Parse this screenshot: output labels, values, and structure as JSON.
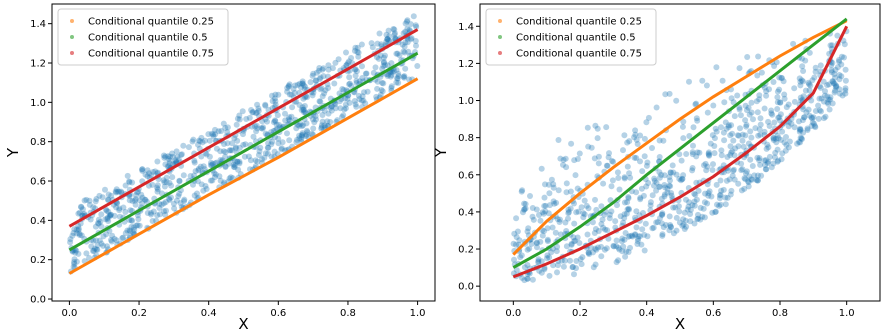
{
  "chart_data": [
    {
      "type": "scatter",
      "title": "",
      "xlabel": "X",
      "ylabel": "Y",
      "xlim": [
        -0.05,
        1.05
      ],
      "ylim": [
        -0.01,
        1.5
      ],
      "xticks": [
        "0.0",
        "0.2",
        "0.4",
        "0.6",
        "0.8",
        "1.0"
      ],
      "yticks": [
        "0.0",
        "0.2",
        "0.4",
        "0.6",
        "0.8",
        "1.0",
        "1.2",
        "1.4"
      ],
      "grid": false,
      "legend_position": "top-left",
      "scatter_color": "#1f77b4",
      "scatter_pattern": "linear",
      "series": [
        {
          "name": "Conditional quantile 0.25",
          "color": "#ff7f0e",
          "x": [
            0.0,
            0.2,
            0.4,
            0.6,
            0.8,
            1.0
          ],
          "y": [
            0.13,
            0.33,
            0.53,
            0.72,
            0.92,
            1.12
          ]
        },
        {
          "name": "Conditional quantile 0.5",
          "color": "#2ca02c",
          "x": [
            0.0,
            0.2,
            0.4,
            0.6,
            0.8,
            1.0
          ],
          "y": [
            0.25,
            0.45,
            0.65,
            0.85,
            1.05,
            1.25
          ]
        },
        {
          "name": "Conditional quantile 0.75",
          "color": "#d62728",
          "x": [
            0.0,
            0.2,
            0.4,
            0.6,
            0.8,
            1.0
          ],
          "y": [
            0.37,
            0.57,
            0.77,
            0.97,
            1.17,
            1.37
          ]
        }
      ]
    },
    {
      "type": "scatter",
      "title": "",
      "xlabel": "X",
      "ylabel": "Y",
      "xlim": [
        -0.1,
        1.1
      ],
      "ylim": [
        -0.08,
        1.52
      ],
      "xticks": [
        "0.0",
        "0.2",
        "0.4",
        "0.6",
        "0.8",
        "1.0"
      ],
      "yticks": [
        "0.0",
        "0.2",
        "0.4",
        "0.6",
        "0.8",
        "1.0",
        "1.2",
        "1.4"
      ],
      "grid": false,
      "legend_position": "top-left",
      "scatter_color": "#1f77b4",
      "scatter_pattern": "curved",
      "series": [
        {
          "name": "Conditional quantile 0.25",
          "color": "#ff7f0e",
          "x": [
            0.0,
            0.1,
            0.2,
            0.3,
            0.4,
            0.5,
            0.6,
            0.7,
            0.8,
            0.9,
            1.0
          ],
          "y": [
            0.17,
            0.35,
            0.5,
            0.64,
            0.77,
            0.9,
            1.02,
            1.13,
            1.24,
            1.34,
            1.43
          ]
        },
        {
          "name": "Conditional quantile 0.5",
          "color": "#2ca02c",
          "x": [
            0.0,
            0.1,
            0.2,
            0.3,
            0.4,
            0.5,
            0.6,
            0.7,
            0.8,
            0.9,
            1.0
          ],
          "y": [
            0.1,
            0.2,
            0.32,
            0.45,
            0.6,
            0.74,
            0.88,
            1.02,
            1.16,
            1.3,
            1.44
          ]
        },
        {
          "name": "Conditional quantile 0.75",
          "color": "#d62728",
          "x": [
            0.0,
            0.1,
            0.2,
            0.3,
            0.4,
            0.5,
            0.6,
            0.7,
            0.8,
            0.9,
            1.0
          ],
          "y": [
            0.05,
            0.12,
            0.2,
            0.29,
            0.38,
            0.48,
            0.59,
            0.72,
            0.86,
            1.04,
            1.4
          ]
        }
      ]
    }
  ]
}
